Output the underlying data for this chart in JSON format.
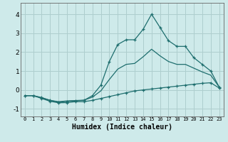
{
  "xlabel": "Humidex (Indice chaleur)",
  "background_color": "#ceeaea",
  "grid_color": "#aecece",
  "line_color": "#1e6e6e",
  "x_ticks": [
    0,
    1,
    2,
    3,
    4,
    5,
    6,
    7,
    8,
    9,
    10,
    11,
    12,
    13,
    14,
    15,
    16,
    17,
    18,
    19,
    20,
    21,
    22,
    23
  ],
  "yticks": [
    -1,
    0,
    1,
    2,
    3,
    4
  ],
  "ylim": [
    -1.4,
    4.6
  ],
  "xlim": [
    -0.5,
    23.5
  ],
  "line1_x": [
    0,
    1,
    2,
    3,
    4,
    5,
    6,
    7,
    8,
    9,
    10,
    11,
    12,
    13,
    14,
    15,
    16,
    17,
    18,
    19,
    20,
    21,
    22,
    23
  ],
  "line1_y": [
    -0.3,
    -0.3,
    -0.4,
    -0.55,
    -0.65,
    -0.6,
    -0.58,
    -0.55,
    -0.3,
    0.25,
    1.5,
    2.4,
    2.65,
    2.65,
    3.2,
    4.0,
    3.3,
    2.6,
    2.3,
    2.3,
    1.7,
    1.35,
    1.0,
    0.15
  ],
  "line2_x": [
    0,
    1,
    2,
    3,
    4,
    5,
    6,
    7,
    8,
    9,
    10,
    11,
    12,
    13,
    14,
    15,
    16,
    17,
    18,
    19,
    20,
    21,
    22,
    23
  ],
  "line2_y": [
    -0.3,
    -0.3,
    -0.45,
    -0.6,
    -0.68,
    -0.67,
    -0.62,
    -0.62,
    -0.55,
    -0.45,
    -0.35,
    -0.25,
    -0.15,
    -0.05,
    0.0,
    0.05,
    0.1,
    0.15,
    0.2,
    0.25,
    0.3,
    0.35,
    0.38,
    0.1
  ],
  "line3_x": [
    0,
    1,
    2,
    3,
    4,
    5,
    6,
    7,
    8,
    9,
    10,
    11,
    12,
    13,
    14,
    15,
    16,
    17,
    18,
    19,
    20,
    21,
    22,
    23
  ],
  "line3_y": [
    -0.3,
    -0.3,
    -0.42,
    -0.55,
    -0.62,
    -0.58,
    -0.56,
    -0.54,
    -0.38,
    -0.05,
    0.55,
    1.1,
    1.35,
    1.4,
    1.75,
    2.15,
    1.8,
    1.5,
    1.35,
    1.35,
    1.15,
    0.95,
    0.78,
    0.15
  ]
}
